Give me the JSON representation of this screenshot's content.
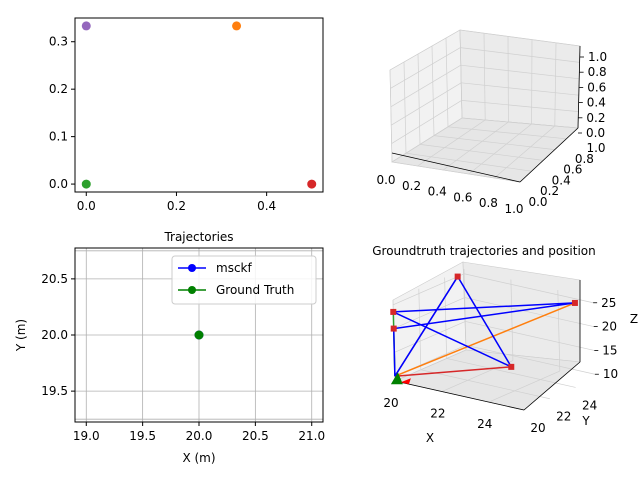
{
  "colors": {
    "purple": "#9467bd",
    "orange": "#ff7f0e",
    "green": "#2ca02c",
    "red": "#d62728",
    "blue": "#0000ff",
    "gt_green": "#008000",
    "grid": "#b0b0b0",
    "pane_light": "#f2f2f2",
    "pane_mid": "#e6e6e6"
  },
  "chart_data": [
    {
      "type": "scatter",
      "title": "",
      "xlabel": "",
      "ylabel": "",
      "xlim": [
        -0.025,
        0.525
      ],
      "ylim": [
        -0.0167,
        0.35
      ],
      "x_ticks": [
        "0.0",
        "0.2",
        "0.4"
      ],
      "x_tick_values": [
        0.0,
        0.2,
        0.4
      ],
      "y_ticks": [
        "0.0",
        "0.1",
        "0.2",
        "0.3"
      ],
      "y_tick_values": [
        0.0,
        0.1,
        0.2,
        0.3
      ],
      "points": [
        {
          "x": 0.0,
          "y": 0.3333,
          "color": "#9467bd"
        },
        {
          "x": 0.3333,
          "y": 0.3333,
          "color": "#ff7f0e"
        },
        {
          "x": 0.0,
          "y": 0.0,
          "color": "#2ca02c"
        },
        {
          "x": 0.5,
          "y": 0.0,
          "color": "#d62728"
        }
      ]
    },
    {
      "type": "scatter3d",
      "title": "",
      "empty": true,
      "xlim": [
        0,
        1
      ],
      "ylim": [
        0,
        1
      ],
      "zlim": [
        0,
        1
      ],
      "x_ticks": [
        "0.0",
        "0.2",
        "0.4",
        "0.6",
        "0.8",
        "1.0"
      ],
      "y_ticks": [
        "0.0",
        "0.2",
        "0.4",
        "0.6",
        "0.8",
        "1.0"
      ],
      "z_ticks": [
        "0.0",
        "0.2",
        "0.4",
        "0.6",
        "0.8",
        "1.0"
      ],
      "tick_values": [
        0.0,
        0.2,
        0.4,
        0.6,
        0.8,
        1.0
      ]
    },
    {
      "type": "line",
      "title": "Trajectories",
      "xlabel": "X (m)",
      "ylabel": "Y (m)",
      "xlim": [
        18.9,
        21.1
      ],
      "ylim": [
        19.225,
        20.775
      ],
      "grid": true,
      "legend": "top-right",
      "x_ticks": [
        "19.0",
        "19.5",
        "20.0",
        "20.5",
        "21.0"
      ],
      "x_tick_values": [
        19.0,
        19.5,
        20.0,
        20.5,
        21.0
      ],
      "y_ticks": [
        "19.5",
        "20.0",
        "20.5"
      ],
      "y_tick_values": [
        19.5,
        20.0,
        20.5
      ],
      "series": [
        {
          "name": "msckf",
          "color": "#0000ff",
          "x": [
            20.0
          ],
          "y": [
            20.0
          ]
        },
        {
          "name": "Ground Truth",
          "color": "#008000",
          "x": [
            20.0
          ],
          "y": [
            20.0
          ]
        }
      ]
    },
    {
      "type": "line3d",
      "title": "Groundtruth trajectories and position",
      "xlabel": "X",
      "ylabel": "Y",
      "zlabel": "Z",
      "xlim": [
        20,
        25.5
      ],
      "ylim": [
        20,
        25.5
      ],
      "zlim": [
        9,
        26
      ],
      "x_ticks": [
        "20",
        "22",
        "24"
      ],
      "x_tick_values": [
        20,
        22,
        24
      ],
      "y_ticks": [
        "20",
        "22",
        "24"
      ],
      "y_tick_values": [
        20,
        22,
        24
      ],
      "z_ticks": [
        "10",
        "15",
        "20",
        "25"
      ],
      "z_tick_values": [
        10,
        15,
        20,
        25
      ],
      "blue_path": [
        [
          20,
          20,
          10
        ],
        [
          20,
          20,
          20
        ],
        [
          25,
          25,
          25
        ],
        [
          20,
          20,
          23.5
        ],
        [
          25,
          20,
          17.5
        ],
        [
          20,
          25,
          25
        ],
        [
          20,
          20,
          10
        ]
      ],
      "lines": [
        {
          "color": "#9467bd",
          "points": [
            [
              20,
              20,
              10
            ],
            [
              20,
              25,
              25
            ]
          ]
        },
        {
          "color": "#ff7f0e",
          "points": [
            [
              20,
              20,
              10
            ],
            [
              25,
              25,
              25
            ]
          ]
        },
        {
          "color": "#2ca02c",
          "points": [
            [
              20,
              20,
              10
            ],
            [
              20,
              20,
              23.5
            ]
          ]
        },
        {
          "color": "#d62728",
          "points": [
            [
              20,
              20,
              10
            ],
            [
              25,
              20,
              17.5
            ]
          ]
        }
      ]
    }
  ]
}
